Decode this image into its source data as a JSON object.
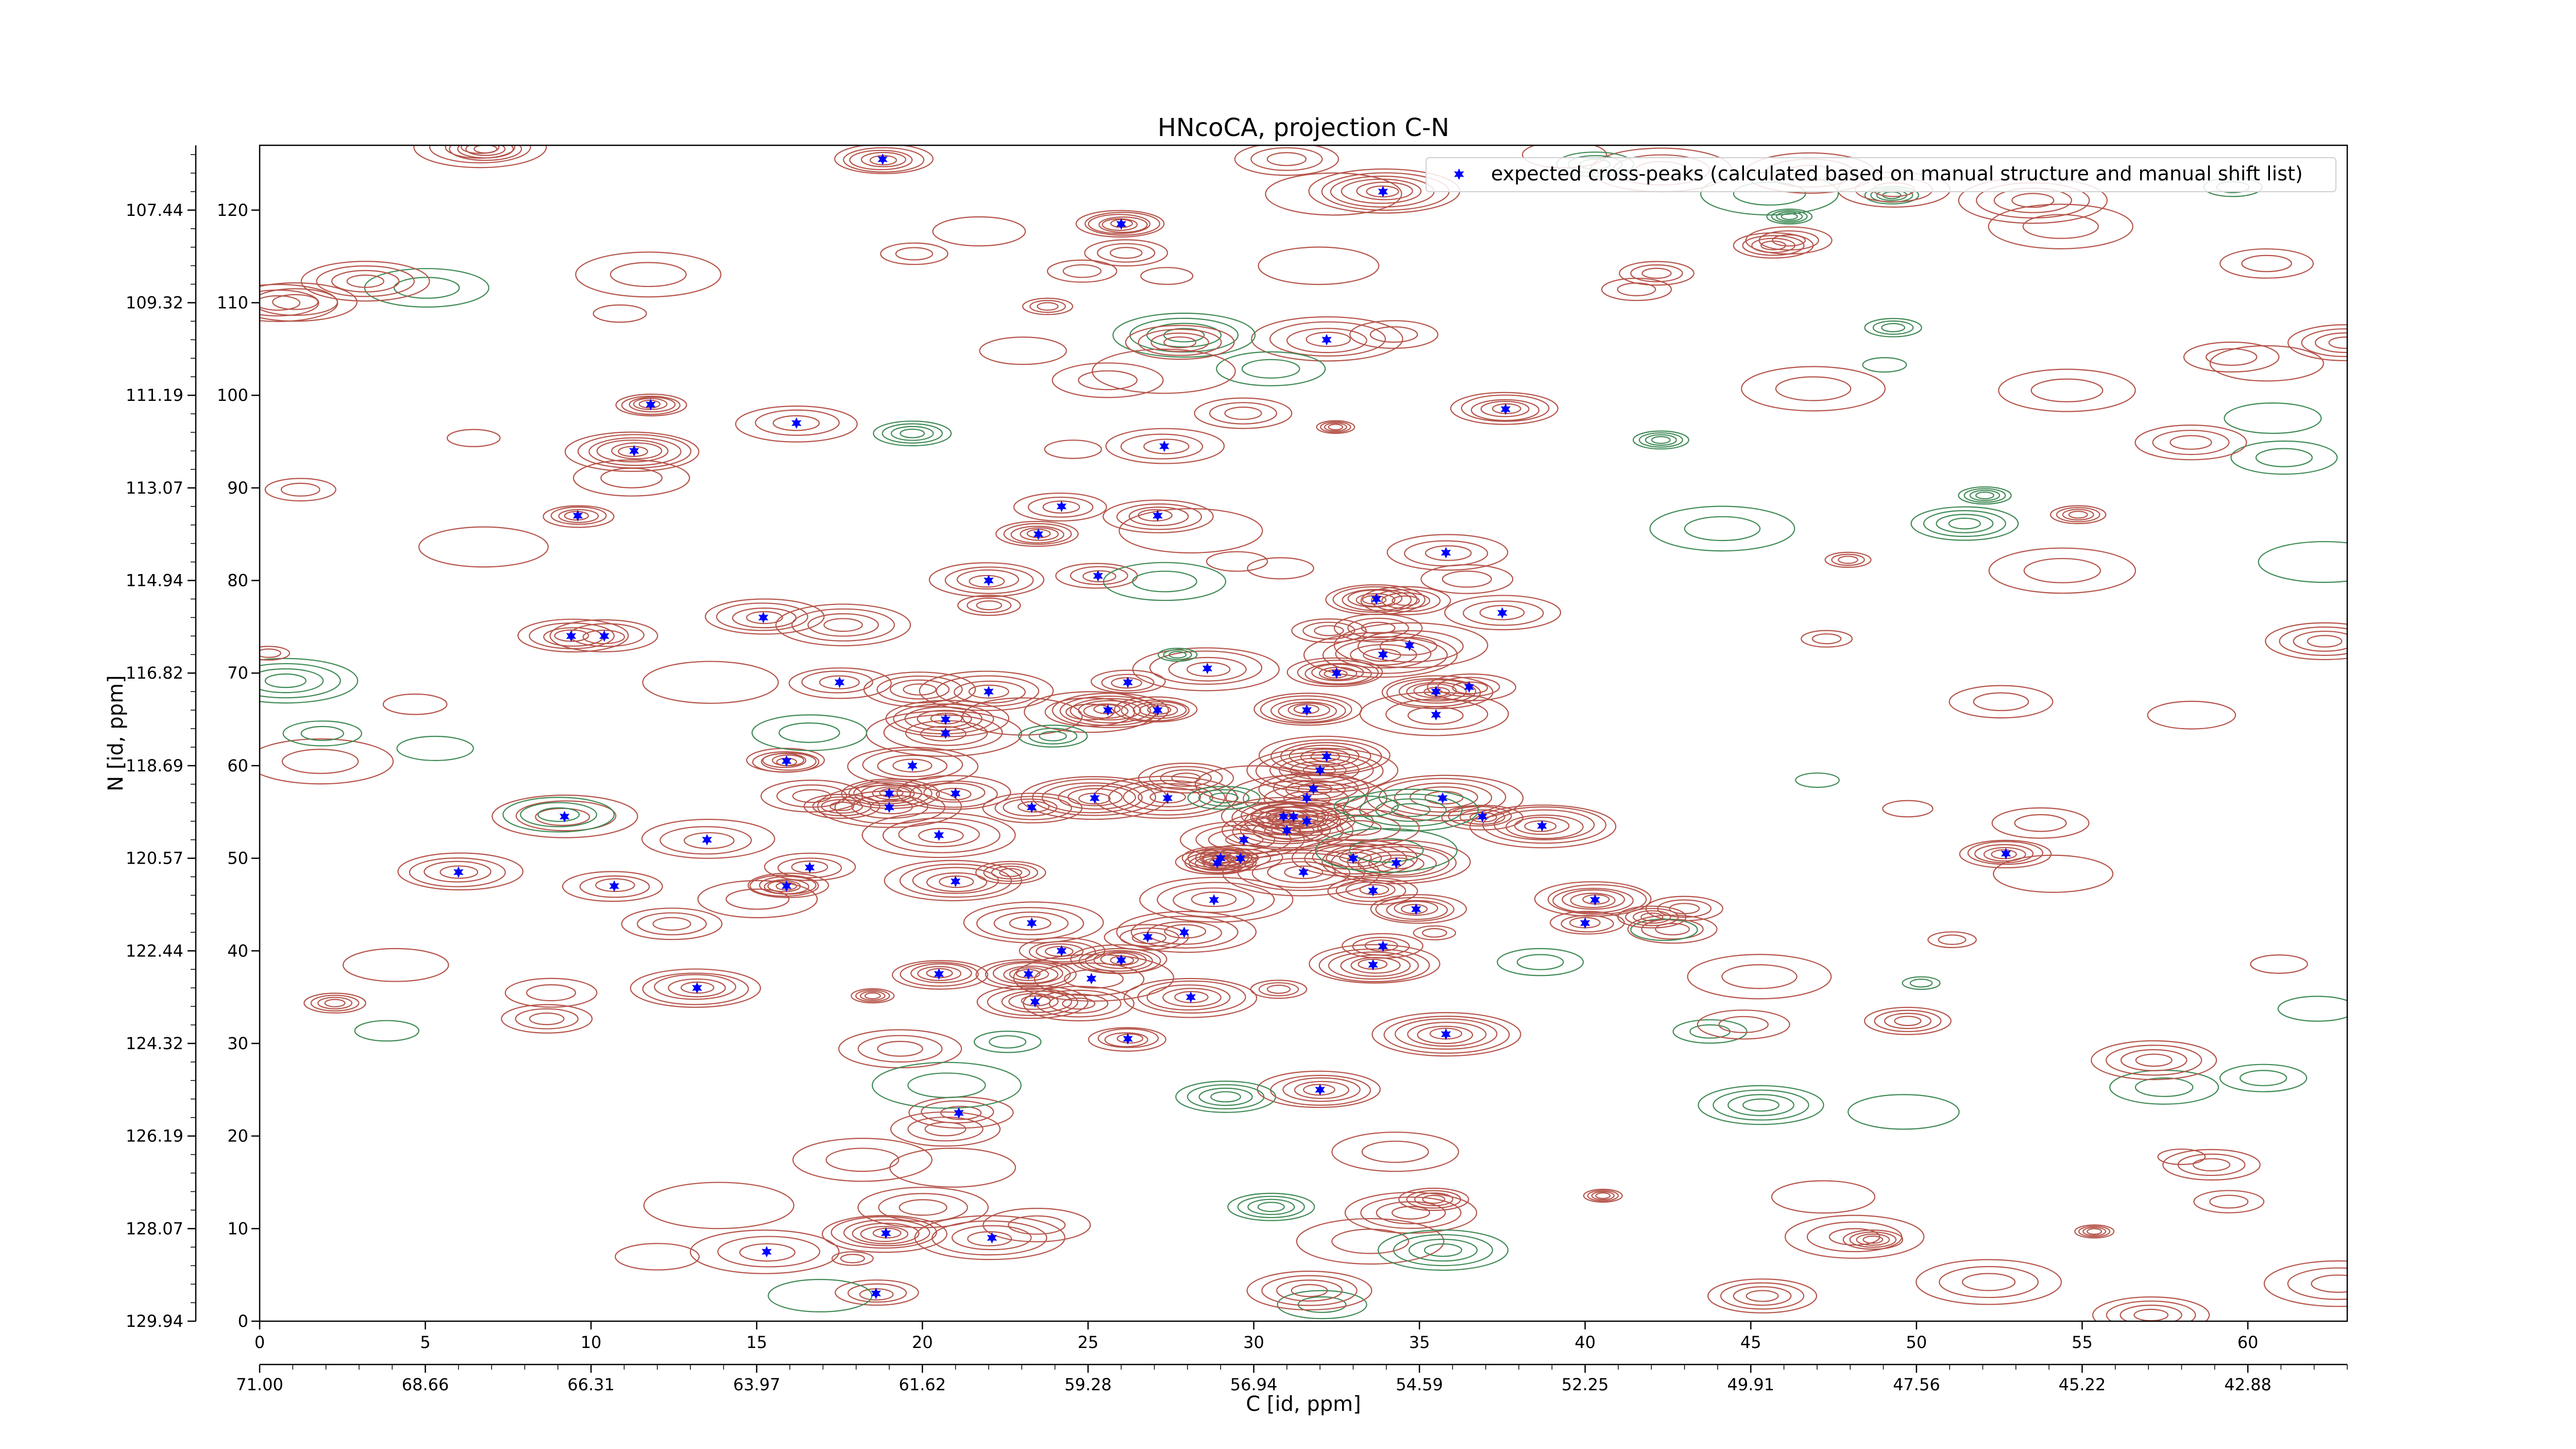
{
  "chart_data": {
    "type": "scatter",
    "title": "HNcoCA, projection C-N",
    "xlabel": "C [id, ppm]",
    "ylabel": "N [id, ppm]",
    "xlim": [
      0,
      63
    ],
    "ylim": [
      0,
      127
    ],
    "grid": false,
    "legend_position": "top-right",
    "x_ticks_index": [
      "0",
      "5",
      "10",
      "15",
      "20",
      "25",
      "30",
      "35",
      "40",
      "45",
      "50",
      "55",
      "60"
    ],
    "x_ticks_ppm": [
      "71.00",
      "68.66",
      "66.31",
      "63.97",
      "61.62",
      "59.28",
      "56.94",
      "54.59",
      "52.25",
      "49.91",
      "47.56",
      "45.22",
      "42.88"
    ],
    "y_ticks_index": [
      "0",
      "10",
      "20",
      "30",
      "40",
      "50",
      "60",
      "70",
      "80",
      "90",
      "100",
      "110",
      "120"
    ],
    "y_ticks_ppm": [
      "129.94",
      "128.07",
      "126.19",
      "124.32",
      "122.44",
      "120.57",
      "118.69",
      "116.82",
      "114.94",
      "113.07",
      "111.19",
      "109.32",
      "107.44"
    ],
    "series": [
      {
        "name": "expected cross-peaks (calculated based on manual structure and manual shift list)",
        "color": "#0000ff",
        "marker": "star",
        "points": [
          [
            18.8,
            125.5
          ],
          [
            26,
            118.5
          ],
          [
            33.9,
            122
          ],
          [
            32.2,
            106
          ],
          [
            37.6,
            98.5
          ],
          [
            11.8,
            99
          ],
          [
            16.2,
            97
          ],
          [
            27.3,
            94.5
          ],
          [
            11.3,
            94
          ],
          [
            24.2,
            88
          ],
          [
            27.1,
            87
          ],
          [
            9.6,
            87
          ],
          [
            23.5,
            85
          ],
          [
            35.8,
            83
          ],
          [
            22.0,
            80
          ],
          [
            25.3,
            80.5
          ],
          [
            33.7,
            78
          ],
          [
            15.2,
            76
          ],
          [
            37.5,
            76.5
          ],
          [
            9.4,
            74
          ],
          [
            10.4,
            74
          ],
          [
            34.7,
            73
          ],
          [
            33.9,
            72
          ],
          [
            28.6,
            70.5
          ],
          [
            32.5,
            70
          ],
          [
            17.5,
            69
          ],
          [
            26.2,
            69
          ],
          [
            35.5,
            68
          ],
          [
            36.5,
            68.5
          ],
          [
            22.0,
            68
          ],
          [
            25.6,
            66
          ],
          [
            27.1,
            66
          ],
          [
            31.6,
            66
          ],
          [
            35.5,
            65.5
          ],
          [
            20.7,
            65
          ],
          [
            20.7,
            63.5
          ],
          [
            32.2,
            61
          ],
          [
            15.9,
            60.5
          ],
          [
            19.7,
            60
          ],
          [
            32.0,
            59.5
          ],
          [
            31.8,
            57.5
          ],
          [
            21.0,
            57
          ],
          [
            19.0,
            57
          ],
          [
            35.7,
            56.5
          ],
          [
            25.2,
            56.5
          ],
          [
            27.4,
            56.5
          ],
          [
            31.6,
            56.5
          ],
          [
            19.0,
            55.5
          ],
          [
            23.3,
            55.5
          ],
          [
            9.2,
            54.5
          ],
          [
            30.9,
            54.5
          ],
          [
            31.2,
            54.5
          ],
          [
            31.6,
            54
          ],
          [
            36.9,
            54.5
          ],
          [
            38.7,
            53.5
          ],
          [
            31.0,
            53
          ],
          [
            20.5,
            52.5
          ],
          [
            13.5,
            52
          ],
          [
            29.7,
            52
          ],
          [
            29.0,
            50
          ],
          [
            28.9,
            49.5
          ],
          [
            29.6,
            50
          ],
          [
            33.0,
            50
          ],
          [
            34.3,
            49.5
          ],
          [
            52.7,
            50.5
          ],
          [
            16.6,
            49
          ],
          [
            6.0,
            48.5
          ],
          [
            31.5,
            48.5
          ],
          [
            10.7,
            47
          ],
          [
            15.9,
            47
          ],
          [
            21.0,
            47.5
          ],
          [
            33.6,
            46.5
          ],
          [
            40.3,
            45.5
          ],
          [
            28.8,
            45.5
          ],
          [
            34.9,
            44.5
          ],
          [
            23.3,
            43
          ],
          [
            40.0,
            43
          ],
          [
            26.8,
            41.5
          ],
          [
            27.9,
            42
          ],
          [
            24.2,
            40
          ],
          [
            33.9,
            40.5
          ],
          [
            26.0,
            39
          ],
          [
            33.6,
            38.5
          ],
          [
            20.5,
            37.5
          ],
          [
            23.2,
            37.5
          ],
          [
            25.1,
            37
          ],
          [
            13.2,
            36
          ],
          [
            28.1,
            35
          ],
          [
            23.4,
            34.5
          ],
          [
            35.8,
            31
          ],
          [
            26.2,
            30.5
          ],
          [
            32.0,
            25
          ],
          [
            21.1,
            22.5
          ],
          [
            15.3,
            7.5
          ],
          [
            18.9,
            9.5
          ],
          [
            22.1,
            9
          ],
          [
            18.6,
            3
          ]
        ]
      }
    ]
  }
}
